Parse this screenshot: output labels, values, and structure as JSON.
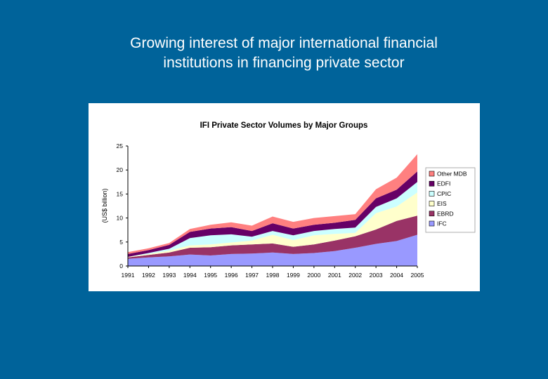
{
  "slide": {
    "title_line1": "Growing interest of major international financial",
    "title_line2": "institutions in financing private sector"
  },
  "chart_data": {
    "type": "area",
    "stacked": true,
    "title": "IFI Private Sector Volumes by Major Groups",
    "ylabel": "(US$ billion)",
    "xlabel": "",
    "ylim": [
      0,
      25
    ],
    "yticks": [
      0,
      5,
      10,
      15,
      20,
      25
    ],
    "grid": false,
    "legend_position": "right",
    "categories": [
      "1991",
      "1992",
      "1993",
      "1994",
      "1995",
      "1996",
      "1997",
      "1998",
      "1999",
      "2000",
      "2001",
      "2002",
      "2003",
      "2004",
      "2005"
    ],
    "series": [
      {
        "name": "IFC",
        "color": "#9999ff",
        "values": [
          1.5,
          1.8,
          2.0,
          2.4,
          2.2,
          2.5,
          2.6,
          2.8,
          2.5,
          2.7,
          3.1,
          3.8,
          4.6,
          5.2,
          6.5
        ]
      },
      {
        "name": "EBRD",
        "color": "#993366",
        "values": [
          0.3,
          0.5,
          0.8,
          1.4,
          1.7,
          1.8,
          1.9,
          1.9,
          1.5,
          1.8,
          2.2,
          2.4,
          3.0,
          4.2,
          4.0
        ]
      },
      {
        "name": "EIS",
        "color": "#ffffcc",
        "values": [
          0.1,
          0.2,
          0.4,
          0.5,
          0.6,
          0.6,
          0.8,
          1.8,
          1.4,
          1.9,
          1.4,
          0.7,
          3.4,
          3.0,
          4.8
        ]
      },
      {
        "name": "CPIC",
        "color": "#ccffff",
        "values": [
          0.0,
          0.2,
          0.4,
          1.5,
          1.9,
          1.7,
          0.8,
          0.8,
          1.0,
          0.9,
          1.0,
          1.1,
          1.3,
          1.7,
          2.2
        ]
      },
      {
        "name": "EDFI",
        "color": "#660066",
        "values": [
          0.6,
          0.6,
          0.8,
          1.3,
          1.4,
          1.5,
          1.2,
          1.6,
          1.4,
          1.3,
          1.3,
          1.6,
          1.8,
          1.8,
          2.2
        ]
      },
      {
        "name": "Other MDB",
        "color": "#ff8080",
        "values": [
          0.4,
          0.4,
          0.4,
          0.6,
          0.8,
          1.0,
          1.1,
          1.4,
          1.4,
          1.4,
          1.4,
          1.2,
          1.9,
          2.5,
          3.6
        ]
      }
    ]
  }
}
